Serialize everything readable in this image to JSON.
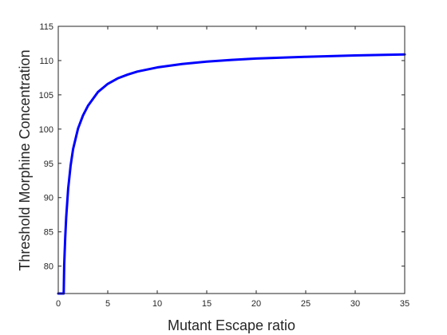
{
  "chart_data": {
    "type": "line",
    "xlabel": "Mutant Escape ratio",
    "ylabel": "Threshold Morphine Concentration",
    "xlim": [
      0,
      35
    ],
    "ylim": [
      76,
      115
    ],
    "xticks": [
      0,
      5,
      10,
      15,
      20,
      25,
      30,
      35
    ],
    "yticks": [
      80,
      85,
      90,
      95,
      100,
      105,
      110,
      115
    ],
    "grid": false,
    "legend": "none",
    "series": [
      {
        "color": "#0000ff",
        "x": [
          0,
          0.55,
          0.6,
          0.7,
          0.8,
          1.0,
          1.25,
          1.5,
          2.0,
          2.5,
          3.0,
          4.0,
          5.0,
          6.0,
          7.0,
          8.0,
          10.0,
          12.5,
          15.0,
          17.5,
          20.0,
          25.0,
          30.0,
          35.0
        ],
        "y": [
          76,
          76,
          80.2,
          84.1,
          87.1,
          91.3,
          94.7,
          97.1,
          100.1,
          102.0,
          103.4,
          105.4,
          106.6,
          107.4,
          107.95,
          108.4,
          109.0,
          109.5,
          109.85,
          110.1,
          110.3,
          110.55,
          110.75,
          110.9
        ]
      }
    ]
  }
}
